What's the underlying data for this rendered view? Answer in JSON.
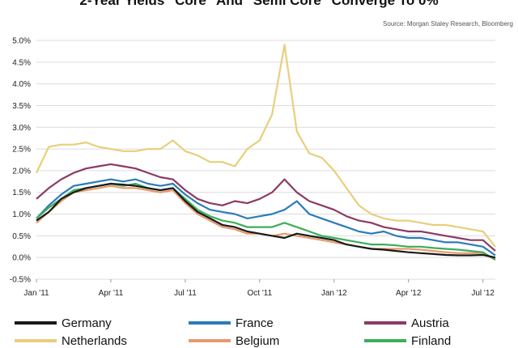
{
  "chart_data": {
    "type": "line",
    "title": "2-Year Yields \"Core\" And \"Semi Core\" Converge To 0%",
    "source": "Source: Morgan Staley Research, Bloomberg",
    "ylim": [
      -0.5,
      5.0
    ],
    "yticks": [
      "5.0%",
      "4.5%",
      "4.0%",
      "3.5%",
      "3.0%",
      "2.5%",
      "2.0%",
      "1.5%",
      "1.0%",
      "0.5%",
      "0.0%",
      "-0.5%"
    ],
    "yticks_values": [
      5.0,
      4.5,
      4.0,
      3.5,
      3.0,
      2.5,
      2.0,
      1.5,
      1.0,
      0.5,
      0.0,
      -0.5
    ],
    "xticks": [
      "Jan '11",
      "Apr '11",
      "Jul '11",
      "Oct '11",
      "Jan '12",
      "Apr '12",
      "Jul '12"
    ],
    "x": [
      0,
      0.5,
      1,
      1.5,
      2,
      2.5,
      3,
      3.5,
      4,
      4.5,
      5,
      5.5,
      6,
      6.5,
      7,
      7.5,
      8,
      8.5,
      9,
      9.5,
      10,
      10.5,
      11,
      11.5,
      12,
      12.5,
      13,
      13.5,
      14,
      14.5,
      15,
      15.5,
      16,
      16.5,
      17,
      17.5,
      18,
      18.5
    ],
    "grid": true,
    "legend_position": "bottom",
    "series": [
      {
        "name": "Germany",
        "color": "#1a1a1a",
        "values": [
          0.85,
          1.05,
          1.35,
          1.5,
          1.6,
          1.65,
          1.7,
          1.68,
          1.65,
          1.6,
          1.55,
          1.6,
          1.3,
          1.05,
          0.9,
          0.75,
          0.7,
          0.6,
          0.55,
          0.5,
          0.45,
          0.55,
          0.5,
          0.45,
          0.4,
          0.3,
          0.25,
          0.2,
          0.18,
          0.15,
          0.12,
          0.1,
          0.08,
          0.06,
          0.05,
          0.05,
          0.06,
          0.0
        ]
      },
      {
        "name": "France",
        "color": "#2b7bb9",
        "values": [
          0.9,
          1.2,
          1.45,
          1.65,
          1.7,
          1.75,
          1.8,
          1.75,
          1.8,
          1.7,
          1.65,
          1.7,
          1.45,
          1.25,
          1.1,
          1.05,
          1.0,
          0.9,
          0.95,
          1.0,
          1.1,
          1.3,
          1.0,
          0.9,
          0.8,
          0.7,
          0.6,
          0.55,
          0.6,
          0.5,
          0.45,
          0.45,
          0.4,
          0.35,
          0.35,
          0.3,
          0.25,
          0.05
        ]
      },
      {
        "name": "Austria",
        "color": "#8b3a62",
        "values": [
          1.35,
          1.6,
          1.8,
          1.95,
          2.05,
          2.1,
          2.15,
          2.1,
          2.05,
          1.95,
          1.85,
          1.8,
          1.55,
          1.35,
          1.25,
          1.2,
          1.3,
          1.25,
          1.35,
          1.5,
          1.8,
          1.5,
          1.3,
          1.2,
          1.1,
          0.95,
          0.85,
          0.8,
          0.7,
          0.65,
          0.6,
          0.6,
          0.55,
          0.5,
          0.45,
          0.4,
          0.4,
          0.15
        ]
      },
      {
        "name": "Netherlands",
        "color": "#e8cf7a",
        "values": [
          1.95,
          2.55,
          2.6,
          2.6,
          2.65,
          2.55,
          2.5,
          2.45,
          2.45,
          2.5,
          2.5,
          2.7,
          2.45,
          2.35,
          2.2,
          2.2,
          2.1,
          2.5,
          2.7,
          3.3,
          4.9,
          2.9,
          2.4,
          2.3,
          2.0,
          1.6,
          1.2,
          1.0,
          0.9,
          0.85,
          0.85,
          0.8,
          0.75,
          0.75,
          0.7,
          0.65,
          0.6,
          0.25
        ]
      },
      {
        "name": "Belgium",
        "color": "#e89a6e",
        "values": [
          0.8,
          1.05,
          1.3,
          1.5,
          1.55,
          1.6,
          1.65,
          1.6,
          1.6,
          1.55,
          1.5,
          1.55,
          1.25,
          1.0,
          0.85,
          0.7,
          0.65,
          0.55,
          0.55,
          0.5,
          0.55,
          0.5,
          0.45,
          0.4,
          0.35,
          0.3,
          0.25,
          0.2,
          0.2,
          0.2,
          0.2,
          0.18,
          0.15,
          0.12,
          0.1,
          0.1,
          0.1,
          -0.05
        ]
      },
      {
        "name": "Finland",
        "color": "#3cae5a",
        "values": [
          0.9,
          1.15,
          1.35,
          1.55,
          1.6,
          1.65,
          1.7,
          1.65,
          1.7,
          1.6,
          1.55,
          1.6,
          1.35,
          1.1,
          0.95,
          0.85,
          0.8,
          0.7,
          0.7,
          0.7,
          0.8,
          0.7,
          0.6,
          0.5,
          0.45,
          0.4,
          0.35,
          0.3,
          0.3,
          0.28,
          0.25,
          0.25,
          0.22,
          0.2,
          0.18,
          0.15,
          0.12,
          -0.05
        ]
      }
    ]
  }
}
